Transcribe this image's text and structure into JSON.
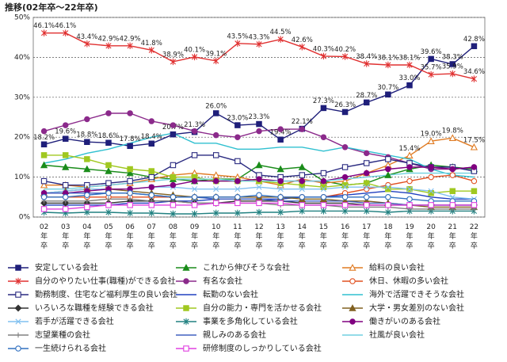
{
  "chart_data": {
    "type": "line",
    "title": "推移(02年卒〜22年卒)",
    "categories": [
      "02年卒",
      "03年卒",
      "04年卒",
      "05年卒",
      "06年卒",
      "07年卒",
      "08年卒",
      "09年卒",
      "10年卒",
      "11年卒",
      "12年卒",
      "13年卒",
      "14年卒",
      "15年卒",
      "16年卒",
      "17年卒",
      "18年卒",
      "19年卒",
      "20年卒",
      "21年卒",
      "22年卒"
    ],
    "ylim": [
      0,
      50
    ],
    "yticks": [
      {
        "value": 0,
        "label": "0%"
      },
      {
        "value": 10,
        "label": "10%"
      },
      {
        "value": 20,
        "label": "20%"
      },
      {
        "value": 30,
        "label": "30%"
      },
      {
        "value": 40,
        "label": "40%"
      },
      {
        "value": 50,
        "label": "50%"
      }
    ],
    "grid": true,
    "series": [
      {
        "name": "安定している会社",
        "color": "#1f1f7a",
        "marker": "square",
        "filled": true,
        "values": [
          18.2,
          19.6,
          18.8,
          18.6,
          17.8,
          18.4,
          20.7,
          21.3,
          26.0,
          23.0,
          23.3,
          19.4,
          22.1,
          27.3,
          26.3,
          28.7,
          30.7,
          33.0,
          39.6,
          38.3,
          42.8
        ],
        "value_labels": [
          "18.2%",
          "19.6%",
          "18.8%",
          "18.6%",
          "17.8%",
          "18.4%",
          "20.7%",
          "21.3%",
          "26.0%",
          "23.0%",
          "23.3%",
          "19.4%",
          "22.1%",
          "27.3%",
          "26.3%",
          "28.7%",
          "30.7%",
          "33.0%",
          "39.6%",
          "38.3%",
          "42.8%"
        ]
      },
      {
        "name": "これから伸びそうな会社",
        "color": "#1a8c1a",
        "marker": "triangle",
        "filled": true,
        "values": [
          13,
          12.5,
          12,
          11.5,
          11,
          10,
          9.5,
          9,
          9.5,
          9.5,
          13,
          12,
          12.5,
          9,
          8,
          8.5,
          10.5,
          12,
          13,
          12.5,
          12
        ]
      },
      {
        "name": "給料の良い会社",
        "color": "#e07b22",
        "marker": "triangle",
        "filled": false,
        "values": [
          8,
          8,
          7.5,
          8,
          8.5,
          9.5,
          10.5,
          11,
          10.5,
          10,
          9,
          8,
          9.5,
          8.5,
          9,
          11,
          13,
          15.4,
          19.0,
          19.8,
          17.5
        ],
        "value_labels": [
          null,
          null,
          null,
          null,
          null,
          null,
          null,
          null,
          null,
          null,
          null,
          null,
          null,
          null,
          null,
          null,
          null,
          "15.4%",
          "19.0%",
          "19.8%",
          "17.5%"
        ]
      },
      {
        "name": "自分のやりたい仕事(職種)ができる会社",
        "color": "#e03030",
        "marker": "star",
        "filled": false,
        "values": [
          46.1,
          46.1,
          43.4,
          42.9,
          42.9,
          41.8,
          38.9,
          40.1,
          39.1,
          43.5,
          43.3,
          44.5,
          42.6,
          40.3,
          40.2,
          38.4,
          38.1,
          38.1,
          35.7,
          35.9,
          34.6
        ],
        "value_labels": [
          "46.1%",
          "46.1%",
          "43.4%",
          "42.9%",
          "42.9%",
          "41.8%",
          "38.9%",
          "40.1%",
          "39.1%",
          "43.5%",
          "43.3%",
          "44.5%",
          "42.6%",
          "40.3%",
          "40.2%",
          "38.4%",
          "38.1%",
          "38.1%",
          "35.7%",
          "35.9%",
          "34.6%"
        ]
      },
      {
        "name": "有名な会社",
        "color": "#8b2a8b",
        "marker": "circle",
        "filled": true,
        "values": [
          21.5,
          23,
          24.5,
          26,
          26,
          24,
          23,
          21.5,
          20.5,
          20,
          21.5,
          22,
          22,
          20,
          17.5,
          16,
          15,
          13.5,
          12,
          12,
          12.5
        ]
      },
      {
        "name": "休日、休暇の多い会社",
        "color": "#e05020",
        "marker": "circle",
        "filled": false,
        "values": [
          5,
          5,
          5,
          5,
          5,
          5,
          5,
          5,
          5,
          5,
          5,
          5,
          5,
          5,
          6,
          7,
          8,
          9,
          10,
          10.5,
          9
        ]
      },
      {
        "name": "勤務制度、住宅など福利厚生の良い会社",
        "color": "#2a2a80",
        "marker": "square",
        "filled": false,
        "values": [
          9,
          8,
          8,
          8.5,
          9,
          10,
          13,
          15.5,
          15.5,
          14,
          10.5,
          10,
          10.5,
          11,
          12.5,
          13.5,
          14.5,
          13.5,
          12.5,
          12.5,
          11.5
        ]
      },
      {
        "name": "転勤のない会社",
        "color": "#2040c0",
        "marker": "none",
        "filled": false,
        "values": [
          3,
          3,
          3,
          3,
          3.5,
          3.5,
          4,
          4,
          4.5,
          4.5,
          4.5,
          4.5,
          5,
          5,
          5.5,
          6,
          6.5,
          6,
          5,
          4.5,
          4.5
        ]
      },
      {
        "name": "海外で活躍できそうな会社",
        "color": "#30c0d0",
        "marker": "none",
        "filled": false,
        "values": [
          13.5,
          14.5,
          16,
          17,
          18.5,
          20,
          21,
          18.5,
          18.5,
          17,
          17,
          17.5,
          17.5,
          16.5,
          17.5,
          16.5,
          15.5,
          14.5,
          12,
          10.5,
          10
        ]
      },
      {
        "name": "いろいろな職種を経験できる会社",
        "color": "#333333",
        "marker": "diamond",
        "filled": true,
        "values": [
          3.5,
          3.5,
          3.5,
          3.5,
          4,
          4,
          4,
          3.5,
          3.5,
          4,
          4,
          4,
          3.5,
          3.5,
          3.5,
          3,
          3,
          3,
          3,
          3,
          3
        ]
      },
      {
        "name": "自分の能力・専門を活かせる会社",
        "color": "#a0c820",
        "marker": "square",
        "filled": true,
        "values": [
          15.5,
          15.5,
          14.5,
          13,
          12,
          11.5,
          10,
          10,
          9,
          9,
          9,
          8.5,
          8,
          7.5,
          8,
          8.5,
          7,
          7,
          6,
          6.5,
          6.5
        ]
      },
      {
        "name": "大学・男女差別のない会社",
        "color": "#806020",
        "marker": "triangle",
        "filled": true,
        "values": [
          6,
          6.5,
          7,
          7,
          6.5,
          6,
          5.5,
          5,
          5,
          5,
          5,
          5,
          4.5,
          4.5,
          4,
          4,
          3.5,
          3,
          2.5,
          2.5,
          2.5
        ]
      },
      {
        "name": "若手が活躍できる会社",
        "color": "#80c0f0",
        "marker": "cross",
        "filled": false,
        "values": [
          6,
          6.5,
          7,
          7,
          7,
          7.5,
          7.5,
          7,
          7,
          7,
          7.5,
          7,
          7,
          7,
          7.5,
          7.5,
          7.5,
          7,
          6.5,
          5,
          4.5
        ]
      },
      {
        "name": "事業を多角化している会社",
        "color": "#208080",
        "marker": "star",
        "filled": false,
        "values": [
          1.2,
          1,
          1.2,
          1.2,
          1,
          1,
          0.8,
          0.8,
          1,
          1,
          1.2,
          1.2,
          1.5,
          1.5,
          1.5,
          1.5,
          1.2,
          1.5,
          1.5,
          1.5,
          1.5
        ]
      },
      {
        "name": "働きがいのある会社",
        "color": "#800080",
        "marker": "circle",
        "filled": true,
        "values": [
          6,
          6,
          6.5,
          7,
          7,
          7.5,
          8,
          9,
          9,
          9,
          9.5,
          9,
          9,
          9,
          10,
          11,
          12,
          12.5,
          12.5,
          12,
          12.5
        ]
      },
      {
        "name": "志望業種の会社",
        "color": "#808080",
        "marker": "plus",
        "filled": false,
        "values": [
          4,
          4,
          4,
          4.5,
          4.5,
          4,
          4,
          3.5,
          3.5,
          3.5,
          3.5,
          3,
          3,
          3,
          2.5,
          2.5,
          2.5,
          2,
          2,
          2,
          2
        ]
      },
      {
        "name": "親しみのある会社",
        "color": "#4060c0",
        "marker": "none",
        "filled": false,
        "values": [
          6,
          6,
          6,
          6,
          6,
          5.5,
          5,
          5,
          4.5,
          4.5,
          4.5,
          4,
          4,
          4,
          4,
          3.5,
          3.5,
          3,
          3,
          3,
          3
        ]
      },
      {
        "name": "社風が良い会社",
        "color": "#70d0e0",
        "marker": "none",
        "filled": false,
        "values": [
          7,
          7,
          7.5,
          8,
          8.5,
          9,
          9.5,
          9.5,
          9.5,
          9,
          9,
          9,
          9,
          9,
          9.5,
          10,
          10.5,
          11,
          11,
          11,
          11
        ]
      },
      {
        "name": "一生続けられる会社",
        "color": "#3070c0",
        "marker": "circle",
        "filled": false,
        "values": [
          5,
          5,
          5.5,
          6,
          6,
          5.5,
          5,
          5,
          5,
          5,
          5.5,
          5,
          5,
          5,
          5,
          5,
          5,
          4.5,
          4,
          4,
          4
        ]
      },
      {
        "name": "研修制度のしっかりしている会社",
        "color": "#e040e0",
        "marker": "square",
        "filled": false,
        "values": [
          2,
          2,
          2.5,
          3,
          3,
          3,
          3,
          3,
          3.5,
          3.5,
          3.5,
          3.5,
          3,
          3,
          3,
          3,
          3,
          3,
          3,
          3,
          3
        ]
      }
    ]
  }
}
